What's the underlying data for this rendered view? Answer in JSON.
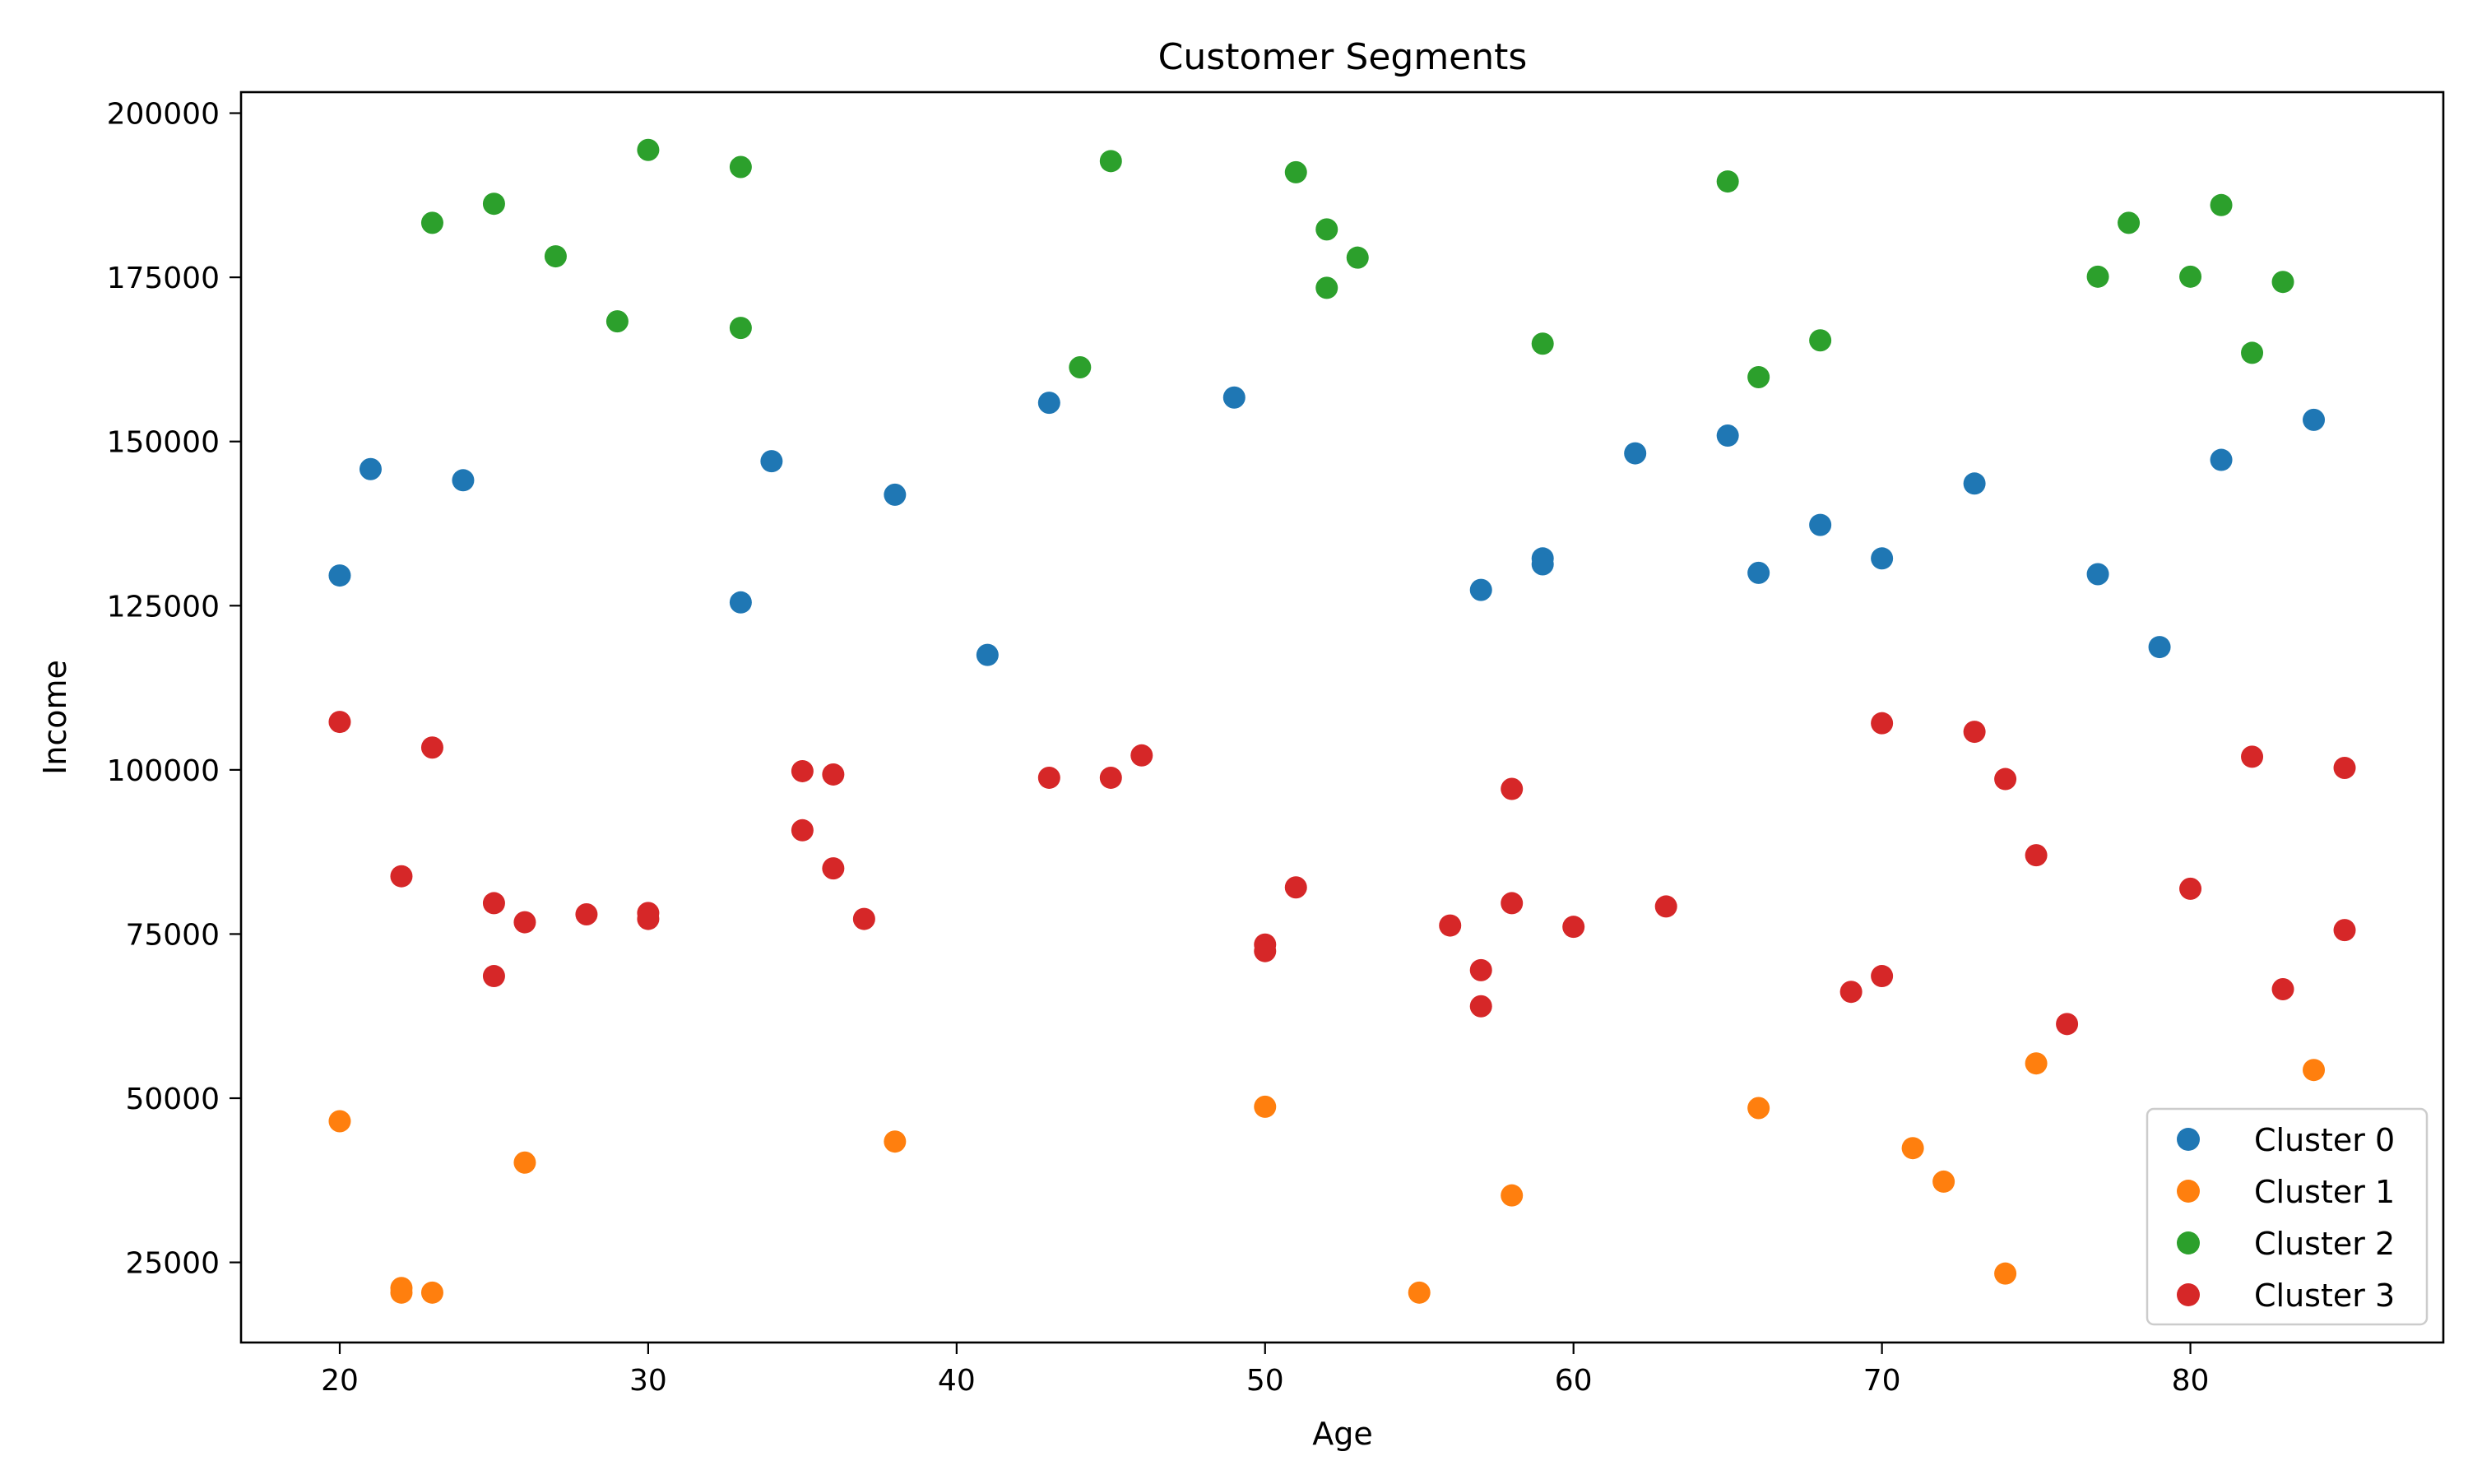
{
  "chart_data": {
    "type": "scatter",
    "title": "Customer Segments",
    "xlabel": "Age",
    "ylabel": "Income",
    "xlim": [
      16.8,
      88.2
    ],
    "ylim": [
      12800,
      203200
    ],
    "xticks": [
      20,
      30,
      40,
      50,
      60,
      70,
      80
    ],
    "yticks": [
      25000,
      50000,
      75000,
      100000,
      125000,
      150000,
      175000,
      200000
    ],
    "grid": false,
    "legend_position": "lower right",
    "series": [
      {
        "name": "Cluster 0",
        "color": "#1f77b4",
        "points": [
          [
            20,
            129600
          ],
          [
            21,
            145800
          ],
          [
            24,
            144100
          ],
          [
            33,
            125500
          ],
          [
            34,
            147000
          ],
          [
            38,
            141900
          ],
          [
            41,
            117500
          ],
          [
            43,
            155900
          ],
          [
            49,
            156700
          ],
          [
            57,
            127400
          ],
          [
            59,
            132200
          ],
          [
            59,
            131300
          ],
          [
            62,
            148200
          ],
          [
            65,
            150900
          ],
          [
            66,
            130000
          ],
          [
            68,
            137300
          ],
          [
            70,
            132200
          ],
          [
            73,
            143600
          ],
          [
            77,
            129800
          ],
          [
            79,
            118700
          ],
          [
            81,
            147200
          ],
          [
            84,
            153300
          ]
        ]
      },
      {
        "name": "Cluster 1",
        "color": "#ff7f0e",
        "points": [
          [
            20,
            46500
          ],
          [
            22,
            21100
          ],
          [
            22,
            20400
          ],
          [
            23,
            20400
          ],
          [
            26,
            40200
          ],
          [
            38,
            43400
          ],
          [
            50,
            48700
          ],
          [
            55,
            20400
          ],
          [
            58,
            35200
          ],
          [
            66,
            48500
          ],
          [
            71,
            42400
          ],
          [
            72,
            37300
          ],
          [
            74,
            23300
          ],
          [
            75,
            55300
          ],
          [
            84,
            54300
          ]
        ]
      },
      {
        "name": "Cluster 2",
        "color": "#2ca02c",
        "points": [
          [
            23,
            183300
          ],
          [
            25,
            186200
          ],
          [
            27,
            178200
          ],
          [
            29,
            168300
          ],
          [
            30,
            194400
          ],
          [
            33,
            191800
          ],
          [
            33,
            167300
          ],
          [
            44,
            161300
          ],
          [
            45,
            192700
          ],
          [
            51,
            191000
          ],
          [
            52,
            182300
          ],
          [
            52,
            173400
          ],
          [
            53,
            178000
          ],
          [
            59,
            164900
          ],
          [
            65,
            189600
          ],
          [
            66,
            159800
          ],
          [
            68,
            165400
          ],
          [
            77,
            175100
          ],
          [
            78,
            183300
          ],
          [
            80,
            175100
          ],
          [
            81,
            186000
          ],
          [
            82,
            163500
          ],
          [
            83,
            174300
          ]
        ]
      },
      {
        "name": "Cluster 3",
        "color": "#d62728",
        "points": [
          [
            20,
            107300
          ],
          [
            22,
            83800
          ],
          [
            23,
            103400
          ],
          [
            25,
            79700
          ],
          [
            25,
            68600
          ],
          [
            26,
            76800
          ],
          [
            28,
            78000
          ],
          [
            30,
            78200
          ],
          [
            30,
            77300
          ],
          [
            35,
            99800
          ],
          [
            35,
            90800
          ],
          [
            36,
            99300
          ],
          [
            36,
            85000
          ],
          [
            37,
            77300
          ],
          [
            43,
            98800
          ],
          [
            45,
            98800
          ],
          [
            46,
            102200
          ],
          [
            50,
            73400
          ],
          [
            50,
            72400
          ],
          [
            51,
            82100
          ],
          [
            56,
            76300
          ],
          [
            57,
            69500
          ],
          [
            57,
            64000
          ],
          [
            58,
            97100
          ],
          [
            58,
            79700
          ],
          [
            60,
            76100
          ],
          [
            63,
            79200
          ],
          [
            69,
            66200
          ],
          [
            70,
            107100
          ],
          [
            70,
            68600
          ],
          [
            73,
            105800
          ],
          [
            74,
            98600
          ],
          [
            75,
            87000
          ],
          [
            76,
            61300
          ],
          [
            80,
            81900
          ],
          [
            82,
            102000
          ],
          [
            83,
            66600
          ],
          [
            85,
            100300
          ],
          [
            85,
            75600
          ]
        ]
      }
    ]
  }
}
